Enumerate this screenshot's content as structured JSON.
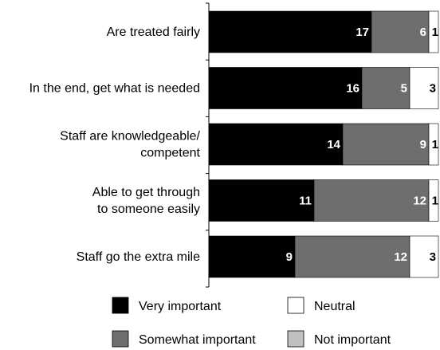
{
  "chart_data": {
    "type": "bar",
    "orientation": "horizontal",
    "stacked": true,
    "categories": [
      "Are treated fairly",
      "In the end, get what is needed",
      "Staff are knowledgeable/ competent",
      "Able to get through to someone easily",
      "Staff go the extra mile"
    ],
    "category_lines": [
      [
        "Are treated fairly"
      ],
      [
        "In the end, get what is needed"
      ],
      [
        "Staff are knowledgeable/",
        "competent"
      ],
      [
        "Able to get through",
        "to someone easily"
      ],
      [
        "Staff go the extra mile"
      ]
    ],
    "series": [
      {
        "name": "Very important",
        "values": [
          17,
          16,
          14,
          11,
          9
        ],
        "color": "#000000",
        "label_color": "#ffffff"
      },
      {
        "name": "Somewhat important",
        "values": [
          6,
          5,
          9,
          12,
          12
        ],
        "color": "#6e6e6e",
        "label_color": "#ffffff"
      },
      {
        "name": "Neutral",
        "values": [
          1,
          3,
          1,
          1,
          3
        ],
        "color": "#ffffff",
        "label_color": "#000000"
      },
      {
        "name": "Not important",
        "values": [
          0,
          0,
          0,
          0,
          0
        ],
        "color": "#c0c0c0",
        "label_color": "#000000"
      }
    ],
    "xlim": [
      0,
      24
    ],
    "grid": false,
    "legend_position": "bottom"
  }
}
